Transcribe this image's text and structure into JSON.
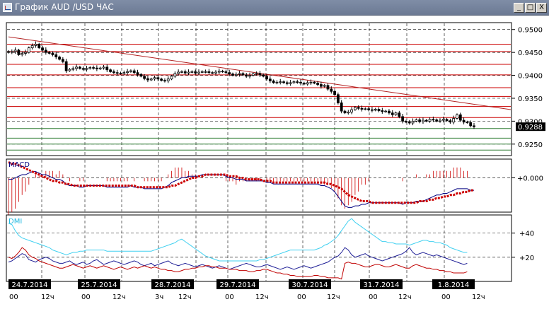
{
  "window": {
    "title": "График AUD /USD ЧАС",
    "buttons": [
      "_",
      "□",
      "X"
    ]
  },
  "colors": {
    "candle": "#000000",
    "trendline": "#b22222",
    "resistance": "#cc0000",
    "support": "#2e7d32",
    "macd_line": "#000080",
    "macd_signal": "#cc0000",
    "dmi_plus": "#1e1e96",
    "dmi_minus": "#c00000",
    "adx": "#40d0f0",
    "grid": "#000000",
    "price_box": "#000000"
  },
  "chart_data": [
    {
      "type": "candlestick",
      "panel": "price",
      "ylim": [
        0.9225,
        0.9515
      ],
      "yticks": [
        "0.9500",
        "0.9450",
        "0.9400",
        "0.9350",
        "0.9300",
        "0.9250"
      ],
      "current_price": "0.9288",
      "resistance_levels": [
        0.9468,
        0.9452,
        0.9424,
        0.9401,
        0.9373,
        0.9354,
        0.9332,
        0.9308
      ],
      "support_levels": [
        0.9284,
        0.9263,
        0.925,
        0.9237
      ],
      "trendline": {
        "from": [
          0,
          0.9484
        ],
        "to": [
          136,
          0.9338
        ]
      },
      "closes": [
        0.945,
        0.9452,
        0.9455,
        0.9445,
        0.9448,
        0.945,
        0.946,
        0.9465,
        0.9468,
        0.946,
        0.9455,
        0.945,
        0.9448,
        0.9445,
        0.944,
        0.9435,
        0.943,
        0.941,
        0.9413,
        0.9415,
        0.9418,
        0.9415,
        0.9413,
        0.9415,
        0.9417,
        0.9416,
        0.9414,
        0.9416,
        0.9418,
        0.9412,
        0.9408,
        0.9406,
        0.9405,
        0.9404,
        0.9406,
        0.9408,
        0.941,
        0.9406,
        0.9402,
        0.9398,
        0.9393,
        0.939,
        0.9392,
        0.9395,
        0.9392,
        0.9389,
        0.9388,
        0.9392,
        0.9398,
        0.9404,
        0.9407,
        0.9408,
        0.9405,
        0.9407,
        0.9408,
        0.9405,
        0.9407,
        0.9408,
        0.9408,
        0.9406,
        0.9405,
        0.9407,
        0.9409,
        0.9408,
        0.9406,
        0.9403,
        0.94,
        0.9402,
        0.9404,
        0.9401,
        0.9398,
        0.94,
        0.9403,
        0.9404,
        0.9401,
        0.9398,
        0.9392,
        0.9388,
        0.9384,
        0.9385,
        0.9386,
        0.9384,
        0.9382,
        0.9384,
        0.9386,
        0.9385,
        0.9383,
        0.9381,
        0.9384,
        0.9385,
        0.9383,
        0.938,
        0.9376,
        0.9378,
        0.937,
        0.9365,
        0.9358,
        0.934,
        0.9322,
        0.9318,
        0.932,
        0.9325,
        0.933,
        0.9328,
        0.9326,
        0.9327,
        0.9325,
        0.9324,
        0.9326,
        0.9323,
        0.9321,
        0.9322,
        0.9318,
        0.9314,
        0.9318,
        0.931,
        0.93,
        0.9298,
        0.9296,
        0.93,
        0.9303,
        0.9299,
        0.9302,
        0.93,
        0.9304,
        0.9303,
        0.93,
        0.9302,
        0.9304,
        0.9301,
        0.9298,
        0.9306,
        0.9314,
        0.9302,
        0.9298,
        0.9297,
        0.929,
        0.9288
      ]
    },
    {
      "type": "line",
      "panel": "macd",
      "title": "MACD",
      "ylim": [
        -0.0022,
        0.0012
      ],
      "yticks": [
        "+0.000"
      ],
      "series": [
        {
          "role": "macd",
          "values": [
            -0.0001,
            -0.0001,
            0.0,
            0.0001,
            0.0002,
            0.0002,
            0.0003,
            0.0004,
            0.0004,
            0.0003,
            0.0002,
            0.0002,
            0.0001,
            0.0,
            -0.0001,
            -0.0001,
            -0.0002,
            -0.0004,
            -0.0005,
            -0.0005,
            -0.0005,
            -0.0006,
            -0.0006,
            -0.0005,
            -0.0005,
            -0.0005,
            -0.0005,
            -0.0005,
            -0.0005,
            -0.0006,
            -0.0006,
            -0.0006,
            -0.0006,
            -0.0006,
            -0.0006,
            -0.0006,
            -0.0005,
            -0.0006,
            -0.0006,
            -0.0006,
            -0.0007,
            -0.0007,
            -0.0007,
            -0.0007,
            -0.0007,
            -0.0007,
            -0.0006,
            -0.0005,
            -0.0003,
            -0.0002,
            -0.0001,
            0.0,
            0.0,
            0.0001,
            0.0001,
            0.0001,
            0.0001,
            0.0002,
            0.0002,
            0.0002,
            0.0002,
            0.0002,
            0.0002,
            0.0002,
            0.0001,
            0.0,
            0.0,
            -0.0001,
            -0.0001,
            -0.0001,
            -0.0002,
            -0.0002,
            -0.0002,
            -0.0002,
            -0.0002,
            -0.0002,
            -0.0003,
            -0.0003,
            -0.0004,
            -0.0004,
            -0.0004,
            -0.0004,
            -0.0004,
            -0.0004,
            -0.0004,
            -0.0004,
            -0.0004,
            -0.0004,
            -0.0004,
            -0.0004,
            -0.0004,
            -0.0004,
            -0.0005,
            -0.0005,
            -0.0006,
            -0.0007,
            -0.0009,
            -0.0012,
            -0.0015,
            -0.0018,
            -0.0019,
            -0.0019,
            -0.0018,
            -0.0018,
            -0.0017,
            -0.0017,
            -0.0016,
            -0.0016,
            -0.0016,
            -0.0016,
            -0.0016,
            -0.0016,
            -0.0016,
            -0.0016,
            -0.0016,
            -0.0016,
            -0.0017,
            -0.0016,
            -0.0016,
            -0.0016,
            -0.0015,
            -0.0015,
            -0.0015,
            -0.0014,
            -0.0013,
            -0.0012,
            -0.0011,
            -0.0011,
            -0.001,
            -0.001,
            -0.0009,
            -0.0008,
            -0.0007,
            -0.0007,
            -0.0007,
            -0.0007,
            -0.0008,
            -0.0008
          ]
        },
        {
          "role": "signal",
          "values": [
            0.001,
            0.0009,
            0.0009,
            0.0008,
            0.0007,
            0.0006,
            0.0005,
            0.0004,
            0.0003,
            0.0002,
            0.0001,
            0.0,
            -0.0001,
            -0.0002,
            -0.0002,
            -0.0003,
            -0.0003,
            -0.0004,
            -0.0004,
            -0.0005,
            -0.0005,
            -0.0005,
            -0.0005,
            -0.0005,
            -0.0005,
            -0.0005,
            -0.0005,
            -0.0005,
            -0.0005,
            -0.0005,
            -0.0005,
            -0.0005,
            -0.0005,
            -0.0005,
            -0.0005,
            -0.0005,
            -0.0005,
            -0.0005,
            -0.0006,
            -0.0006,
            -0.0006,
            -0.0006,
            -0.0006,
            -0.0006,
            -0.0006,
            -0.0006,
            -0.0006,
            -0.0006,
            -0.0005,
            -0.0005,
            -0.0004,
            -0.0003,
            -0.0002,
            -0.0001,
            0.0,
            0.0,
            0.0001,
            0.0001,
            0.0002,
            0.0002,
            0.0002,
            0.0002,
            0.0002,
            0.0002,
            0.0002,
            0.0001,
            0.0001,
            0.0001,
            0.0,
            0.0,
            -0.0001,
            -0.0001,
            -0.0001,
            -0.0001,
            -0.0001,
            -0.0002,
            -0.0002,
            -0.0002,
            -0.0003,
            -0.0003,
            -0.0003,
            -0.0003,
            -0.0003,
            -0.0003,
            -0.0003,
            -0.0003,
            -0.0003,
            -0.0003,
            -0.0003,
            -0.0003,
            -0.0003,
            -0.0003,
            -0.0003,
            -0.0003,
            -0.0004,
            -0.0004,
            -0.0005,
            -0.0006,
            -0.0007,
            -0.0009,
            -0.0011,
            -0.0012,
            -0.0013,
            -0.0014,
            -0.0015,
            -0.0015,
            -0.0015,
            -0.0016,
            -0.0016,
            -0.0016,
            -0.0016,
            -0.0016,
            -0.0016,
            -0.0016,
            -0.0016,
            -0.0016,
            -0.0016,
            -0.0016,
            -0.0016,
            -0.0016,
            -0.0016,
            -0.0015,
            -0.0015,
            -0.0015,
            -0.0014,
            -0.0014,
            -0.0013,
            -0.0013,
            -0.0012,
            -0.0012,
            -0.0011,
            -0.0011,
            -0.001,
            -0.001,
            -0.0009,
            -0.0009,
            -0.0008,
            -0.0008
          ]
        }
      ]
    },
    {
      "type": "line",
      "panel": "dmi",
      "title": "DMI",
      "ylim": [
        0,
        55
      ],
      "yticks": [
        "+40",
        "+20"
      ],
      "series": [
        {
          "role": "adx",
          "values": [
            48,
            47,
            42,
            38,
            36,
            35,
            34,
            33,
            32,
            31,
            30,
            29,
            28,
            26,
            25,
            24,
            23,
            22,
            23,
            24,
            24,
            25,
            25,
            26,
            26,
            26,
            26,
            26,
            26,
            25,
            25,
            25,
            25,
            25,
            25,
            25,
            25,
            25,
            25,
            25,
            25,
            25,
            25,
            26,
            27,
            28,
            29,
            30,
            31,
            32,
            34,
            35,
            33,
            31,
            29,
            27,
            25,
            23,
            21,
            20,
            19,
            18,
            17,
            17,
            17,
            17,
            17,
            17,
            17,
            17,
            17,
            17,
            17,
            17,
            18,
            18,
            19,
            20,
            21,
            22,
            23,
            24,
            25,
            26,
            26,
            26,
            26,
            26,
            26,
            26,
            26,
            27,
            28,
            30,
            31,
            33,
            35,
            38,
            42,
            46,
            50,
            52,
            49,
            47,
            45,
            43,
            41,
            39,
            37,
            35,
            33,
            33,
            32,
            32,
            31,
            31,
            31,
            31,
            30,
            31,
            32,
            33,
            34,
            34,
            33,
            33,
            32,
            32,
            31,
            30,
            28,
            27,
            26,
            25,
            24,
            24
          ]
        },
        {
          "role": "plus_di",
          "values": [
            16,
            17,
            19,
            21,
            23,
            22,
            18,
            17,
            16,
            18,
            19,
            20,
            19,
            17,
            16,
            15,
            15,
            16,
            17,
            15,
            14,
            15,
            16,
            14,
            15,
            17,
            18,
            16,
            14,
            15,
            16,
            17,
            16,
            15,
            14,
            15,
            16,
            17,
            16,
            14,
            13,
            14,
            15,
            13,
            14,
            15,
            16,
            17,
            15,
            14,
            13,
            14,
            15,
            14,
            13,
            12,
            13,
            14,
            13,
            12,
            11,
            12,
            13,
            12,
            11,
            10,
            11,
            12,
            13,
            14,
            15,
            14,
            13,
            12,
            12,
            13,
            14,
            13,
            12,
            11,
            10,
            11,
            12,
            11,
            10,
            11,
            12,
            13,
            12,
            11,
            12,
            13,
            14,
            15,
            16,
            18,
            20,
            21,
            24,
            28,
            26,
            22,
            20,
            21,
            22,
            23,
            21,
            20,
            19,
            18,
            17,
            18,
            19,
            20,
            21,
            22,
            23,
            25,
            28,
            24,
            22,
            23,
            24,
            23,
            22,
            21,
            22,
            21,
            20,
            19,
            18,
            17,
            16,
            15,
            14,
            15
          ]
        },
        {
          "role": "minus_di",
          "values": [
            20,
            19,
            21,
            24,
            28,
            26,
            22,
            20,
            19,
            17,
            16,
            15,
            14,
            13,
            12,
            11,
            11,
            12,
            13,
            14,
            13,
            12,
            11,
            12,
            13,
            12,
            11,
            12,
            13,
            12,
            11,
            10,
            11,
            12,
            11,
            10,
            11,
            12,
            11,
            12,
            13,
            12,
            11,
            12,
            11,
            10,
            10,
            9,
            9,
            8,
            8,
            9,
            10,
            10,
            11,
            11,
            12,
            12,
            13,
            13,
            12,
            12,
            11,
            11,
            11,
            10,
            10,
            10,
            9,
            9,
            9,
            8,
            8,
            9,
            9,
            10,
            10,
            9,
            8,
            7,
            7,
            6,
            6,
            5,
            5,
            4,
            4,
            4,
            4,
            4,
            5,
            5,
            4,
            4,
            3,
            3,
            3,
            3,
            2,
            15,
            16,
            15,
            15,
            14,
            13,
            12,
            12,
            13,
            14,
            14,
            13,
            12,
            12,
            13,
            14,
            13,
            12,
            11,
            11,
            13,
            14,
            13,
            12,
            11,
            11,
            10,
            10,
            9,
            9,
            8,
            8,
            7,
            7,
            7,
            7,
            8
          ]
        }
      ]
    },
    {
      "type": "axis",
      "panel": "time",
      "dates": [
        "24.7.2014",
        "25.7.2014",
        "28.7.2014",
        "29.7.2014",
        "30.7.2014",
        "31.7.2014",
        "1.8.2014"
      ],
      "hours": [
        "00",
        "12ч",
        "00",
        "12ч",
        "3ч",
        "12ч",
        "00",
        "12ч",
        "00",
        "12ч",
        "00",
        "12ч",
        "00",
        "12ч"
      ]
    }
  ]
}
